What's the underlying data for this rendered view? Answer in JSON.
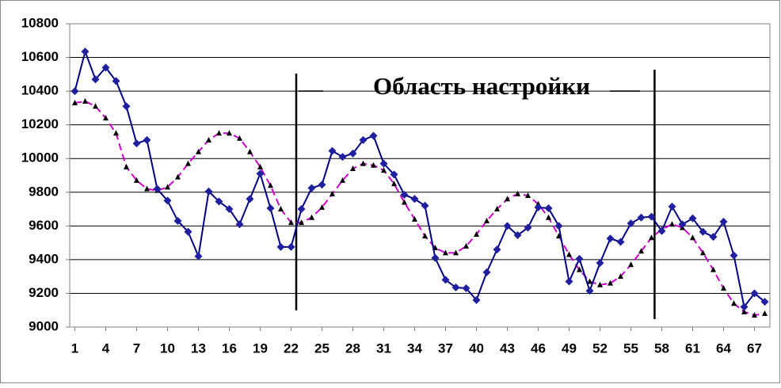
{
  "chart_data": {
    "type": "line",
    "annotation": "Область настройки",
    "region_bounds": [
      22.5,
      57.3
    ],
    "x": [
      1,
      2,
      3,
      4,
      5,
      6,
      7,
      8,
      9,
      10,
      11,
      12,
      13,
      14,
      15,
      16,
      17,
      18,
      19,
      20,
      21,
      22,
      23,
      24,
      25,
      26,
      27,
      28,
      29,
      30,
      31,
      32,
      33,
      34,
      35,
      36,
      37,
      38,
      39,
      40,
      41,
      42,
      43,
      44,
      45,
      46,
      47,
      48,
      49,
      50,
      51,
      52,
      53,
      54,
      55,
      56,
      57,
      58,
      59,
      60,
      61,
      62,
      63,
      64,
      65,
      66,
      67,
      68
    ],
    "xlim": [
      0.5,
      68.5
    ],
    "xticks": [
      1,
      4,
      7,
      10,
      13,
      16,
      19,
      22,
      25,
      28,
      31,
      34,
      37,
      40,
      43,
      46,
      49,
      52,
      55,
      58,
      61,
      64,
      67
    ],
    "ylim": [
      9000,
      10800
    ],
    "yticks": [
      9000,
      9200,
      9400,
      9600,
      9800,
      10000,
      10200,
      10400,
      10600,
      10800
    ],
    "grid": true,
    "series": [
      {
        "color": "#000080",
        "marker_color": "#1f1f9f",
        "values": [
          10400,
          10635,
          10470,
          10540,
          10460,
          10310,
          10090,
          10110,
          9820,
          9750,
          9630,
          9565,
          9420,
          9805,
          9745,
          9700,
          9610,
          9760,
          9910,
          9705,
          9475,
          9475,
          9700,
          9825,
          9845,
          10045,
          10010,
          10030,
          10110,
          10135,
          9970,
          9905,
          9785,
          9760,
          9720,
          9410,
          9280,
          9235,
          9230,
          9160,
          9325,
          9460,
          9600,
          9545,
          9590,
          9710,
          9705,
          9600,
          9270,
          9405,
          9215,
          9380,
          9525,
          9505,
          9615,
          9650,
          9655,
          9570,
          9715,
          9610,
          9645,
          9565,
          9535,
          9625,
          9425,
          9120,
          9200,
          9150
        ]
      },
      {
        "color": "#cc00cc",
        "marker_color": "#000000",
        "dashed": true,
        "values": [
          10330,
          10340,
          10310,
          10240,
          10150,
          9950,
          9870,
          9820,
          9810,
          9830,
          9890,
          9970,
          10040,
          10110,
          10150,
          10150,
          10120,
          10040,
          9950,
          9840,
          9700,
          9620,
          9620,
          9650,
          9710,
          9790,
          9870,
          9940,
          9970,
          9960,
          9930,
          9850,
          9740,
          9640,
          9540,
          9470,
          9440,
          9440,
          9480,
          9550,
          9630,
          9700,
          9760,
          9790,
          9780,
          9730,
          9650,
          9540,
          9430,
          9340,
          9270,
          9250,
          9260,
          9300,
          9370,
          9450,
          9530,
          9580,
          9610,
          9590,
          9530,
          9440,
          9340,
          9230,
          9140,
          9090,
          9070,
          9080
        ]
      }
    ]
  }
}
